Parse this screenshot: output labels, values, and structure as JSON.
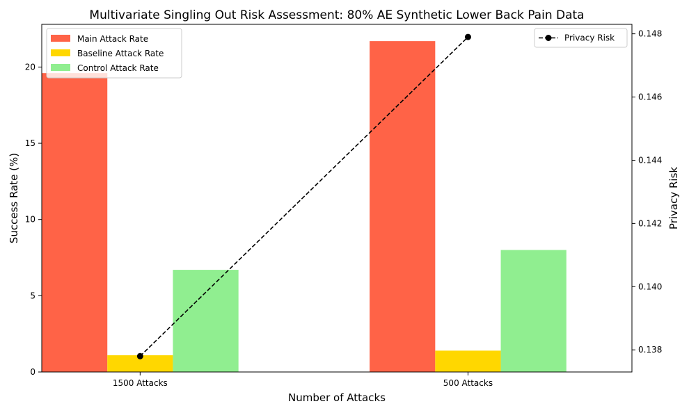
{
  "chart_data": {
    "type": "bar",
    "title": "Multivariate Singling Out Risk Assessment: 80% AE Synthetic Lower Back Pain Data",
    "xlabel": "Number of Attacks",
    "ylabel": "Success Rate (%)",
    "y2label": "Privacy Risk",
    "categories": [
      "1500 Attacks",
      "500 Attacks"
    ],
    "ylim": [
      0,
      22.8
    ],
    "y2lim": [
      0.1373,
      0.1483
    ],
    "yticks": [
      "0",
      "5",
      "10",
      "15",
      "20"
    ],
    "y2ticks": [
      "0.138",
      "0.140",
      "0.142",
      "0.144",
      "0.146",
      "0.148"
    ],
    "series": [
      {
        "name": "Main Attack Rate",
        "color": "#ff6347",
        "values": [
          19.6,
          21.7
        ]
      },
      {
        "name": "Baseline Attack Rate",
        "color": "#ffd700",
        "values": [
          1.1,
          1.4
        ]
      },
      {
        "name": "Control Attack Rate",
        "color": "#90ee90",
        "values": [
          6.7,
          8.0
        ]
      }
    ],
    "line_series": {
      "name": "Privacy Risk",
      "color": "#000000",
      "style": "dashed",
      "marker": "circle",
      "axis": "right",
      "values": [
        0.1378,
        0.1479
      ]
    },
    "legend_left": "top-left",
    "legend_right": "top-right",
    "grid": false
  }
}
